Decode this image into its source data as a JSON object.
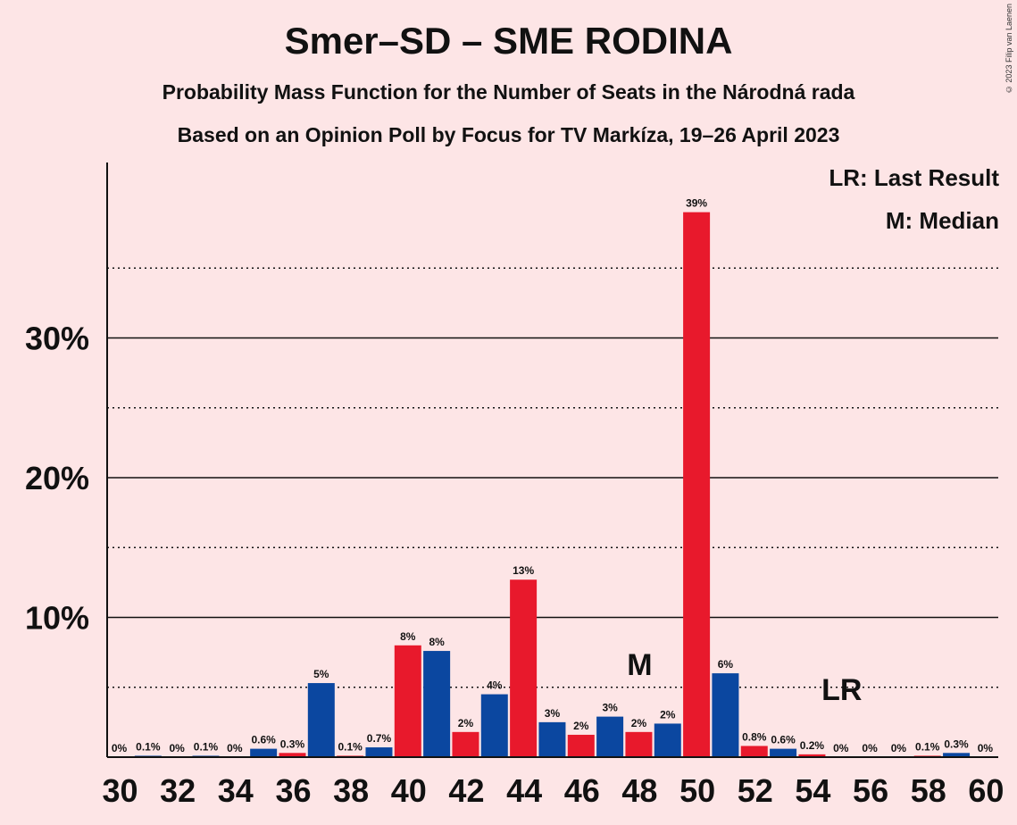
{
  "chart_data": {
    "type": "bar",
    "title": "Smer–SD – SME RODINA",
    "subtitle": "Probability Mass Function for the Number of Seats in the Národná rada",
    "subtitle2": "Based on an Opinion Poll by Focus for TV Markíza, 19–26 April 2023",
    "copyright": "© 2023 Filip van Laenen",
    "legend": {
      "last_result": "LR: Last Result",
      "median": "M: Median"
    },
    "ylim": [
      0,
      42
    ],
    "yticks_major": [
      10,
      20,
      30
    ],
    "ytick_labels": [
      "10%",
      "20%",
      "30%"
    ],
    "yticks_minor": [
      5,
      15,
      25,
      35
    ],
    "xticks": [
      30,
      32,
      34,
      36,
      38,
      40,
      42,
      44,
      46,
      48,
      50,
      52,
      54,
      56,
      58,
      60
    ],
    "bars": [
      {
        "seats": 30,
        "value": 0,
        "label": "0%"
      },
      {
        "seats": 31,
        "value": 0.1,
        "label": "0.1%"
      },
      {
        "seats": 32,
        "value": 0,
        "label": "0%"
      },
      {
        "seats": 33,
        "value": 0.1,
        "label": "0.1%"
      },
      {
        "seats": 34,
        "value": 0,
        "label": "0%"
      },
      {
        "seats": 35,
        "value": 0.6,
        "label": "0.6%"
      },
      {
        "seats": 36,
        "value": 0.3,
        "label": "0.3%"
      },
      {
        "seats": 37,
        "value": 5.3,
        "label": "5%"
      },
      {
        "seats": 38,
        "value": 0.1,
        "label": "0.1%"
      },
      {
        "seats": 39,
        "value": 0.7,
        "label": "0.7%"
      },
      {
        "seats": 40,
        "value": 8.0,
        "label": "8%"
      },
      {
        "seats": 41,
        "value": 7.6,
        "label": "8%"
      },
      {
        "seats": 42,
        "value": 1.8,
        "label": "2%"
      },
      {
        "seats": 43,
        "value": 4.5,
        "label": "4%"
      },
      {
        "seats": 44,
        "value": 12.7,
        "label": "13%"
      },
      {
        "seats": 45,
        "value": 2.5,
        "label": "3%"
      },
      {
        "seats": 46,
        "value": 1.6,
        "label": "2%"
      },
      {
        "seats": 47,
        "value": 2.9,
        "label": "3%"
      },
      {
        "seats": 48,
        "value": 1.8,
        "label": "2%"
      },
      {
        "seats": 49,
        "value": 2.4,
        "label": "2%"
      },
      {
        "seats": 50,
        "value": 39.0,
        "label": "39%"
      },
      {
        "seats": 51,
        "value": 6.0,
        "label": "6%"
      },
      {
        "seats": 52,
        "value": 0.8,
        "label": "0.8%"
      },
      {
        "seats": 53,
        "value": 0.6,
        "label": "0.6%"
      },
      {
        "seats": 54,
        "value": 0.2,
        "label": "0.2%"
      },
      {
        "seats": 55,
        "value": 0,
        "label": "0%"
      },
      {
        "seats": 56,
        "value": 0,
        "label": "0%"
      },
      {
        "seats": 57,
        "value": 0,
        "label": "0%"
      },
      {
        "seats": 58,
        "value": 0.1,
        "label": "0.1%"
      },
      {
        "seats": 59,
        "value": 0.3,
        "label": "0.3%"
      },
      {
        "seats": 60,
        "value": 0,
        "label": "0%"
      }
    ],
    "median": {
      "seats": 48,
      "label": "M"
    },
    "last_result": {
      "seats": 55,
      "label": "LR"
    },
    "colors": {
      "even": "#e8192c",
      "odd": "#0b47a0",
      "background": "#fde5e6"
    }
  }
}
